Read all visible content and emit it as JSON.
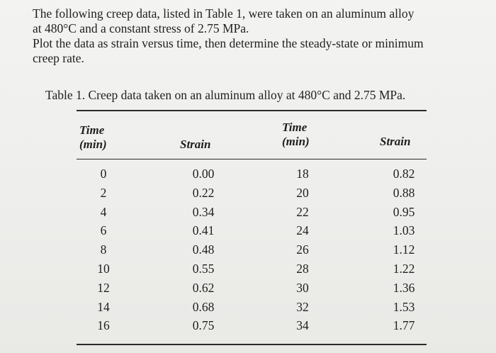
{
  "problem": {
    "line1": "The following creep data, listed in Table 1, were taken on an aluminum alloy",
    "line2": "at 480°C and a constant stress of 2.75 MPa.",
    "line3": "Plot the data as strain versus time, then determine the steady-state or minimum",
    "line4": "creep rate."
  },
  "table": {
    "caption": "Table 1. Creep data taken on an aluminum alloy at 480°C and 2.75 MPa.",
    "headers": {
      "time1_a": "Time",
      "time1_b": "(min)",
      "strain1": "Strain",
      "time2_a": "Time",
      "time2_b": "(min)",
      "strain2": "Strain"
    },
    "left": {
      "time": [
        "0",
        "2",
        "4",
        "6",
        "8",
        "10",
        "12",
        "14",
        "16"
      ],
      "strain": [
        "0.00",
        "0.22",
        "0.34",
        "0.41",
        "0.48",
        "0.55",
        "0.62",
        "0.68",
        "0.75"
      ]
    },
    "right": {
      "time": [
        "18",
        "20",
        "22",
        "24",
        "26",
        "28",
        "30",
        "32",
        "34"
      ],
      "strain": [
        "0.82",
        "0.88",
        "0.95",
        "1.03",
        "1.12",
        "1.22",
        "1.36",
        "1.53",
        "1.77"
      ]
    }
  }
}
